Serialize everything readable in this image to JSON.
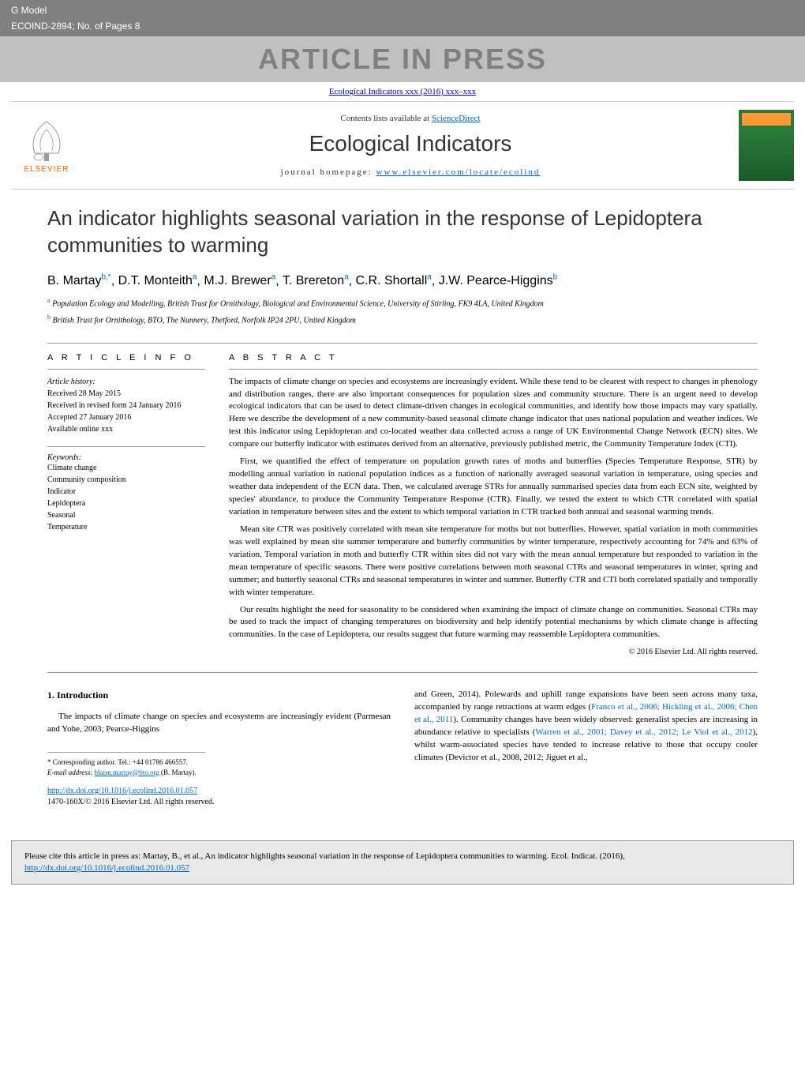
{
  "header": {
    "model_label": "G Model",
    "model_code": "ECOIND-2894; No. of Pages 8",
    "press_banner": "ARTICLE IN PRESS",
    "journal_ref": "Ecological Indicators xxx (2016) xxx–xxx"
  },
  "masthead": {
    "elsevier_label": "ELSEVIER",
    "contents_line_prefix": "Contents lists available at ",
    "contents_line_link": "ScienceDirect",
    "journal_title": "Ecological Indicators",
    "homepage_prefix": "journal homepage: ",
    "homepage_link": "www.elsevier.com/locate/ecolind"
  },
  "article": {
    "title": "An indicator highlights seasonal variation in the response of Lepidoptera communities to warming",
    "authors_html": "B. Martay",
    "author_list": [
      {
        "name": "B. Martay",
        "aff": "b,*"
      },
      {
        "name": "D.T. Monteith",
        "aff": "a"
      },
      {
        "name": "M.J. Brewer",
        "aff": "a"
      },
      {
        "name": "T. Brereton",
        "aff": "a"
      },
      {
        "name": "C.R. Shortall",
        "aff": "a"
      },
      {
        "name": "J.W. Pearce-Higgins",
        "aff": "b"
      }
    ],
    "affiliations": [
      {
        "sup": "a",
        "text": "Population Ecology and Modelling, British Trust for Ornithology, Biological and Environmental Science, University of Stirling, FK9 4LA, United Kingdom"
      },
      {
        "sup": "b",
        "text": "British Trust for Ornithology, BTO, The Nunnery, Thetford, Norfolk IP24 2PU, United Kingdom"
      }
    ]
  },
  "info": {
    "heading": "A R T I C L E   I N F O",
    "history_label": "Article history:",
    "history": [
      "Received 28 May 2015",
      "Received in revised form 24 January 2016",
      "Accepted 27 January 2016",
      "Available online xxx"
    ],
    "keywords_label": "Keywords:",
    "keywords": [
      "Climate change",
      "Community composition",
      "Indicator",
      "Lepidoptera",
      "Seasonal",
      "Temperature"
    ]
  },
  "abstract": {
    "heading": "A B S T R A C T",
    "paragraphs": [
      "The impacts of climate change on species and ecosystems are increasingly evident. While these tend to be clearest with respect to changes in phenology and distribution ranges, there are also important consequences for population sizes and community structure. There is an urgent need to develop ecological indicators that can be used to detect climate-driven changes in ecological communities, and identify how those impacts may vary spatially. Here we describe the development of a new community-based seasonal climate change indicator that uses national population and weather indices. We test this indicator using Lepidopteran and co-located weather data collected across a range of UK Environmental Change Network (ECN) sites. We compare our butterfly indicator with estimates derived from an alternative, previously published metric, the Community Temperature Index (CTI).",
      "First, we quantified the effect of temperature on population growth rates of moths and butterflies (Species Temperature Response, STR) by modelling annual variation in national population indices as a function of nationally averaged seasonal variation in temperature, using species and weather data independent of the ECN data. Then, we calculated average STRs for annually summarised species data from each ECN site, weighted by species' abundance, to produce the Community Temperature Response (CTR). Finally, we tested the extent to which CTR correlated with spatial variation in temperature between sites and the extent to which temporal variation in CTR tracked both annual and seasonal warming trends.",
      "Mean site CTR was positively correlated with mean site temperature for moths but not butterflies. However, spatial variation in moth communities was well explained by mean site summer temperature and butterfly communities by winter temperature, respectively accounting for 74% and 63% of variation. Temporal variation in moth and butterfly CTR within sites did not vary with the mean annual temperature but responded to variation in the mean temperature of specific seasons. There were positive correlations between moth seasonal CTRs and seasonal temperatures in winter, spring and summer; and butterfly seasonal CTRs and seasonal temperatures in winter and summer. Butterfly CTR and CTI both correlated spatially and temporally with winter temperature.",
      "Our results highlight the need for seasonality to be considered when examining the impact of climate change on communities. Seasonal CTRs may be used to track the impact of changing temperatures on biodiversity and help identify potential mechanisms by which climate change is affecting communities. In the case of Lepidoptera, our results suggest that future warming may reassemble Lepidoptera communities."
    ],
    "copyright": "© 2016 Elsevier Ltd. All rights reserved."
  },
  "intro": {
    "heading": "1. Introduction",
    "left": "The impacts of climate change on species and ecosystems are increasingly evident (Parmesan and Yohe, 2003; Pearce-Higgins",
    "right": "and Green, 2014). Polewards and uphill range expansions have been seen across many taxa, accompanied by range retractions at warm edges (Franco et al., 2006; Hickling et al., 2006; Chen et al., 2011). Community changes have been widely observed: generalist species are increasing in abundance relative to specialists (Warren et al., 2001; Davey et al., 2012; Le Viol et al., 2012), whilst warm-associated species have tended to increase relative to those that occupy cooler climates (Devictor et al., 2008, 2012; Jiguet et al.,"
  },
  "footnote": {
    "corresponding": "* Corresponding author. Tel.: +44 01786 466557.",
    "email_label": "E-mail address: ",
    "email": "blaise.martay@bto.org",
    "email_suffix": " (B. Martay)."
  },
  "doi": {
    "link": "http://dx.doi.org/10.1016/j.ecolind.2016.01.057",
    "issn": "1470-160X/© 2016 Elsevier Ltd. All rights reserved."
  },
  "citation": {
    "text_prefix": "Please cite this article in press as: Martay, B., et al., An indicator highlights seasonal variation in the response of Lepidoptera communities to warming. Ecol. Indicat. (2016), ",
    "link": "http://dx.doi.org/10.1016/j.ecolind.2016.01.057"
  },
  "colors": {
    "header_bg": "#808080",
    "link": "#0066cc",
    "elsevier_orange": "#ff6600",
    "cover_green": "#2a7a3a"
  }
}
